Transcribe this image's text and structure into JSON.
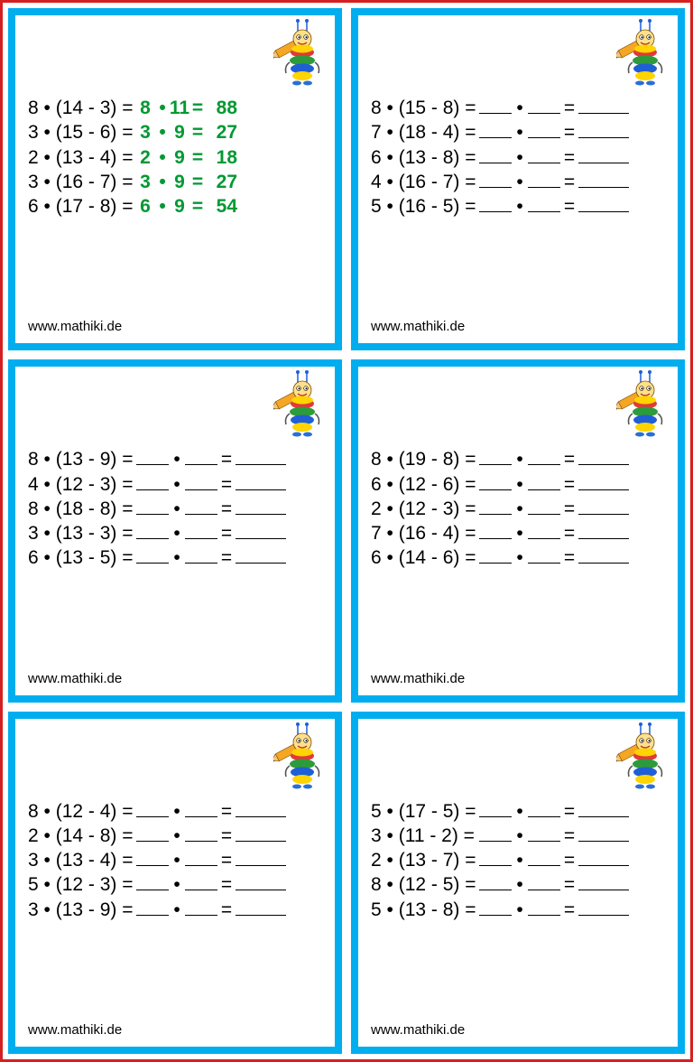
{
  "footer_text": "www.mathiki.de",
  "border_color": "#00aeef",
  "outer_border_color": "#d61f1f",
  "answer_color": "#009933",
  "mascot": {
    "pencil_body": "#f5a623",
    "pencil_tip": "#f2c57c",
    "pencil_lead": "#333333",
    "bug_stripe1": "#ffd400",
    "bug_stripe2": "#e03a3a",
    "bug_stripe3": "#2e9b3a",
    "bug_stripe4": "#1f5fd6",
    "bug_face": "#ffe08a",
    "antenna": "#1f5fd6"
  },
  "cards": [
    {
      "solved": true,
      "rows": [
        {
          "a": "8",
          "b": "14",
          "c": "3",
          "x": "8",
          "y": "11",
          "r": "88"
        },
        {
          "a": "3",
          "b": "15",
          "c": "6",
          "x": "3",
          "y": "9",
          "r": "27"
        },
        {
          "a": "2",
          "b": "13",
          "c": "4",
          "x": "2",
          "y": "9",
          "r": "18"
        },
        {
          "a": "3",
          "b": "16",
          "c": "7",
          "x": "3",
          "y": "9",
          "r": "27"
        },
        {
          "a": "6",
          "b": "17",
          "c": "8",
          "x": "6",
          "y": "9",
          "r": "54"
        }
      ]
    },
    {
      "solved": false,
      "rows": [
        {
          "a": "8",
          "b": "15",
          "c": "8"
        },
        {
          "a": "7",
          "b": "18",
          "c": "4"
        },
        {
          "a": "6",
          "b": "13",
          "c": "8"
        },
        {
          "a": "4",
          "b": "16",
          "c": "7"
        },
        {
          "a": "5",
          "b": "16",
          "c": "5"
        }
      ]
    },
    {
      "solved": false,
      "rows": [
        {
          "a": "8",
          "b": "13",
          "c": "9"
        },
        {
          "a": "4",
          "b": "12",
          "c": "3"
        },
        {
          "a": "8",
          "b": "18",
          "c": "8"
        },
        {
          "a": "3",
          "b": "13",
          "c": "3"
        },
        {
          "a": "6",
          "b": "13",
          "c": "5"
        }
      ]
    },
    {
      "solved": false,
      "rows": [
        {
          "a": "8",
          "b": "19",
          "c": "8"
        },
        {
          "a": "6",
          "b": "12",
          "c": "6"
        },
        {
          "a": "2",
          "b": "12",
          "c": "3"
        },
        {
          "a": "7",
          "b": "16",
          "c": "4"
        },
        {
          "a": "6",
          "b": "14",
          "c": "6"
        }
      ]
    },
    {
      "solved": false,
      "rows": [
        {
          "a": "8",
          "b": "12",
          "c": "4"
        },
        {
          "a": "2",
          "b": "14",
          "c": "8"
        },
        {
          "a": "3",
          "b": "13",
          "c": "4"
        },
        {
          "a": "5",
          "b": "12",
          "c": "3"
        },
        {
          "a": "3",
          "b": "13",
          "c": "9"
        }
      ]
    },
    {
      "solved": false,
      "rows": [
        {
          "a": "5",
          "b": "17",
          "c": "5"
        },
        {
          "a": "3",
          "b": "11",
          "c": "2"
        },
        {
          "a": "2",
          "b": "13",
          "c": "7"
        },
        {
          "a": "8",
          "b": "12",
          "c": "5"
        },
        {
          "a": "5",
          "b": "13",
          "c": "8"
        }
      ]
    }
  ]
}
